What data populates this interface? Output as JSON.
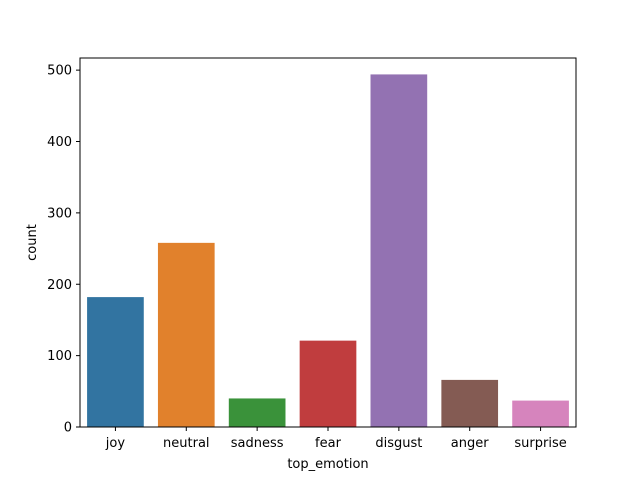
{
  "chart_data": {
    "type": "bar",
    "title": "",
    "xlabel": "top_emotion",
    "ylabel": "count",
    "categories": [
      "joy",
      "neutral",
      "sadness",
      "fear",
      "disgust",
      "anger",
      "surprise"
    ],
    "values": [
      182,
      258,
      40,
      121,
      494,
      66,
      37
    ],
    "colors": [
      "#3274a1",
      "#e1812c",
      "#3a923a",
      "#c03d3e",
      "#9372b2",
      "#845b53",
      "#d684bd"
    ],
    "ylim": [
      0,
      517
    ],
    "yticks": [
      0,
      100,
      200,
      300,
      400,
      500
    ],
    "grid": false,
    "legend": "none"
  }
}
